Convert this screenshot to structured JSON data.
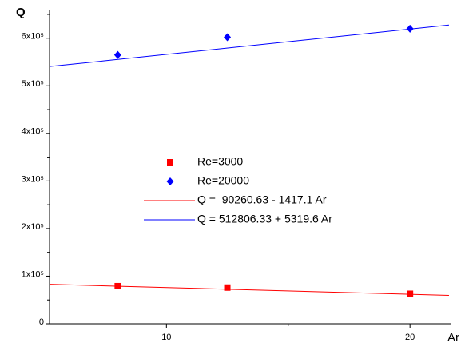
{
  "chart_data": {
    "type": "scatter",
    "y_label": "Q",
    "x_label": "Ar",
    "xlim": [
      5.2,
      21.7
    ],
    "xticks": [
      10,
      20
    ],
    "xminorticks": [
      15
    ],
    "ylim": [
      0,
      660000
    ],
    "yticks": [
      {
        "value": 0,
        "label": "0"
      },
      {
        "value": 100000,
        "label": "1x10⁵"
      },
      {
        "value": 200000,
        "label": "2x10⁵"
      },
      {
        "value": 300000,
        "label": "3x10⁵"
      },
      {
        "value": 400000,
        "label": "4x10⁵"
      },
      {
        "value": 500000,
        "label": "5x10⁵"
      },
      {
        "value": 600000,
        "label": "6x10⁵"
      }
    ],
    "yminorticks": [
      50000,
      150000,
      250000,
      350000,
      450000,
      550000,
      650000
    ],
    "series": [
      {
        "name": "Re=3000",
        "color": "#ff0000",
        "marker": "square",
        "x": [
          8,
          12.5,
          20
        ],
        "values": [
          79000,
          76000,
          63000
        ]
      },
      {
        "name": "Re=20000",
        "color": "#0000ff",
        "marker": "diamond",
        "x": [
          8,
          12.5,
          20
        ],
        "values": [
          565000,
          602000,
          620000
        ]
      }
    ],
    "fits": [
      {
        "name": "Q =  90260.63 - 1417.1 Ar",
        "color": "#ff0000",
        "intercept": 90260.63,
        "slope": -1417.1
      },
      {
        "name": "Q = 512806.33 + 5319.6 Ar",
        "color": "#0000ff",
        "intercept": 512806.33,
        "slope": 5319.6
      }
    ]
  }
}
